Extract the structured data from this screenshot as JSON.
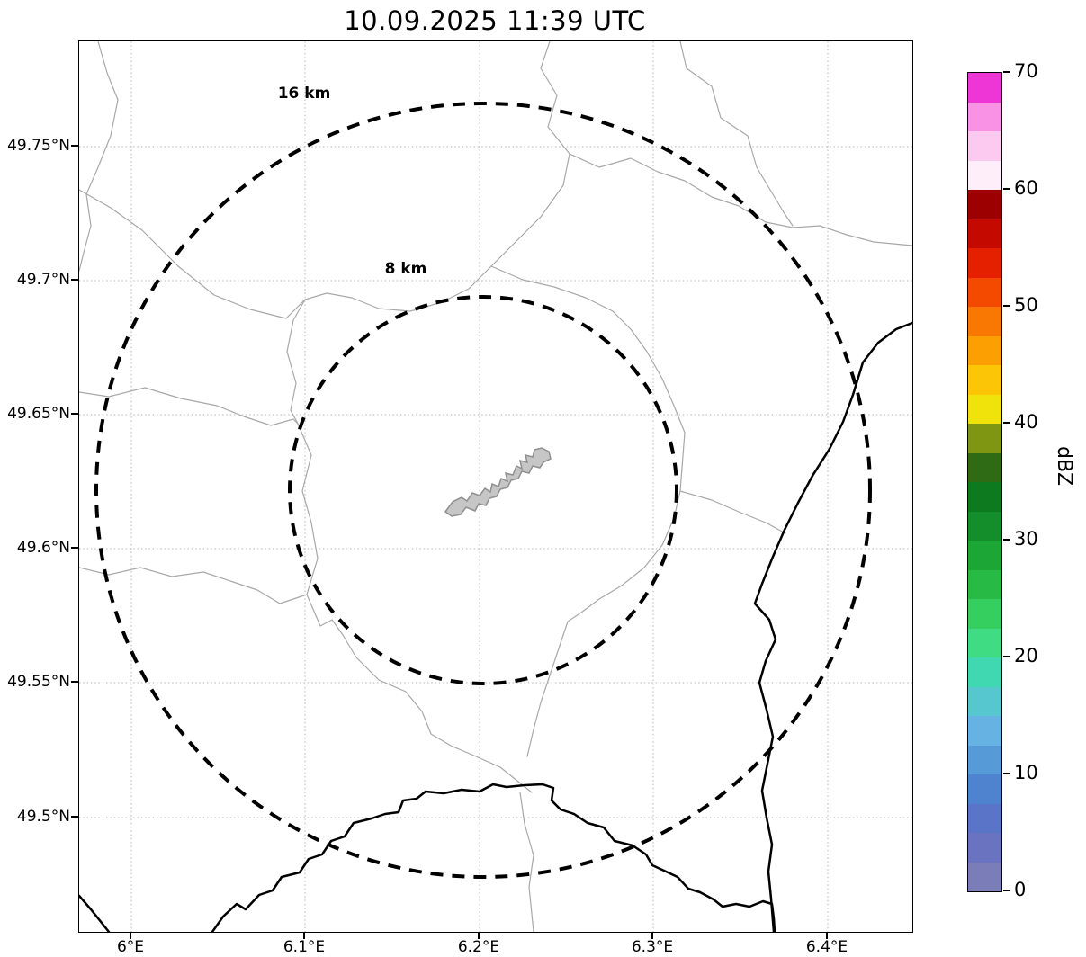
{
  "title": "10.09.2025 11:39 UTC",
  "map": {
    "x_tick_labels": [
      "6°E",
      "6.1°E",
      "6.2°E",
      "6.3°E",
      "6.4°E"
    ],
    "y_tick_labels": [
      "49.75°N",
      "49.7°N",
      "49.65°N",
      "49.6°N",
      "49.55°N",
      "49.5°N"
    ],
    "range_rings": [
      {
        "label": "16 km"
      },
      {
        "label": "8 km"
      }
    ]
  },
  "colorbar": {
    "label": "dBZ",
    "range_min": 0,
    "range_max": 70,
    "tick_labels": [
      "70",
      "60",
      "50",
      "40",
      "30",
      "20",
      "10",
      "0"
    ],
    "segment_colors_bottom_to_top": [
      "#7a7db8",
      "#6a73c0",
      "#5a74c8",
      "#4f83cf",
      "#569bd8",
      "#66b2e2",
      "#57c7cf",
      "#3fd8b0",
      "#3fdc84",
      "#35cf60",
      "#27ba45",
      "#1ca636",
      "#148e2a",
      "#0e7a20",
      "#2f6b14",
      "#7e9612",
      "#f0e20b",
      "#fcc606",
      "#fc9f03",
      "#f97803",
      "#f34a00",
      "#e42000",
      "#c40a00",
      "#9c0000",
      "#fdeef9",
      "#fccaf0",
      "#f992e4",
      "#ee35d6"
    ]
  }
}
